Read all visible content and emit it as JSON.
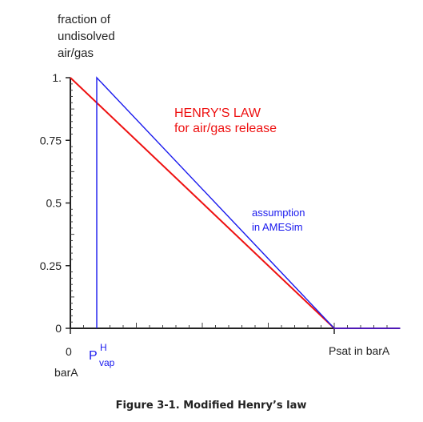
{
  "chart_data": {
    "type": "line",
    "ylabel_lines": [
      "fraction of",
      "undisolved",
      "air/gas"
    ],
    "y_ticks": [
      {
        "value": 1,
        "label": "1."
      },
      {
        "value": 0.75,
        "label": "0.75"
      },
      {
        "value": 0.5,
        "label": "0.5"
      },
      {
        "value": 0.25,
        "label": "0.25"
      },
      {
        "value": 0,
        "label": "0"
      }
    ],
    "ylim": [
      0,
      1
    ],
    "xlim": [
      0,
      1.25
    ],
    "x_labels": {
      "origin": "0",
      "origin_unit": "barA",
      "pvap_main": "P",
      "pvap_sup": "H",
      "pvap_sub": "vap",
      "psat": "Psat in barA"
    },
    "pvap_x": 0.1,
    "psat_x": 1.0,
    "series": [
      {
        "name": "HENRY'S LAW",
        "name_line2": "for air/gas release",
        "color": "#ee1111",
        "x": [
          0,
          1.0,
          1.25
        ],
        "y": [
          1.0,
          0.0,
          0.0
        ]
      },
      {
        "name": "assumption",
        "name_line2": "in AMESim",
        "color": "#1a1aee",
        "x": [
          0.1,
          0.1,
          1.0,
          1.25
        ],
        "y": [
          0.0,
          1.0,
          0.0,
          0.0
        ]
      }
    ],
    "caption": "Figure 3-1. Modified Henry’s law"
  }
}
